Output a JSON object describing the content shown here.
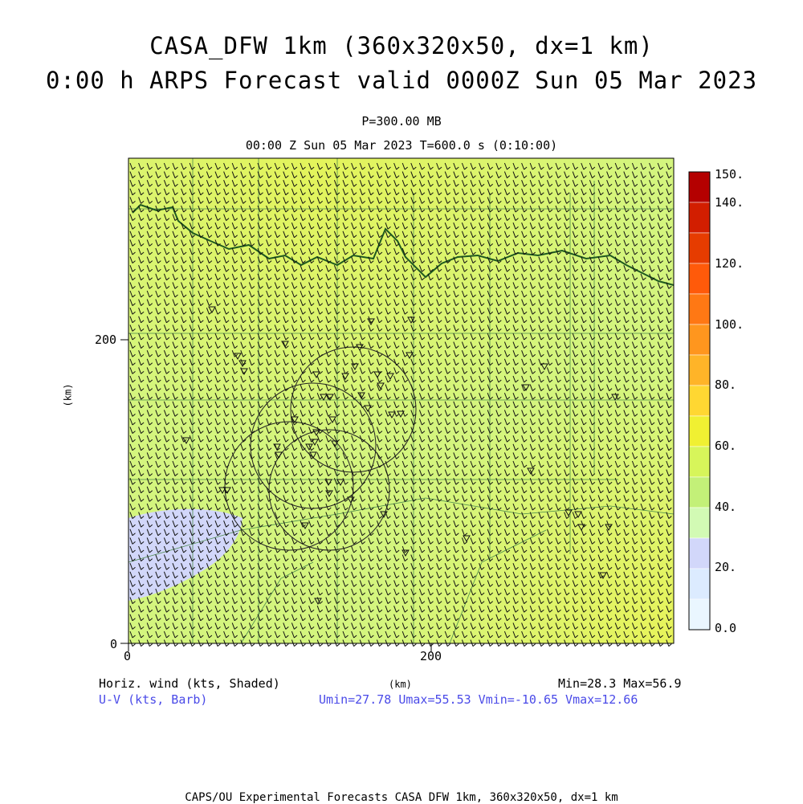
{
  "titles": {
    "line1": "CASA_DFW 1km (360x320x50, dx=1 km)",
    "line2": "0:00 h ARPS Forecast valid 0000Z Sun 05 Mar 2023",
    "pressure": "P=300.00 MB",
    "time": "00:00 Z Sun 05 Mar 2023    T=600.0 s (0:10:00)"
  },
  "axes": {
    "x_label": "(km)",
    "y_label": "(km)",
    "x_ticks": [
      "0",
      "200"
    ],
    "y_ticks": [
      "0",
      "200"
    ]
  },
  "colorbar": {
    "labels": [
      "150.",
      "140.",
      "120.",
      "100.",
      "80.",
      "60.",
      "40.",
      "20.",
      "0.0"
    ],
    "colors": [
      "#b40000",
      "#d21e00",
      "#e63c00",
      "#ff5a0a",
      "#ff7814",
      "#ff961e",
      "#ffb428",
      "#ffd732",
      "#f0f032",
      "#d7f55a",
      "#c3f078",
      "#d2fab4",
      "#d2d7fa",
      "#dcebff",
      "#eaf6ff"
    ]
  },
  "legend": {
    "field_label": "Horiz. wind (kts, Shaded)",
    "barb_label": "U-V (kts, Barb)",
    "minmax": "Min=28.3 Max=56.9",
    "uv_stats": "Umin=27.78 Umax=55.53 Vmin=-10.65 Vmax=12.66"
  },
  "credit": "CAPS/OU Experimental Forecasts  CASA DFW 1km, 360x320x50, dx=1 km",
  "chart_data": {
    "type": "heatmap",
    "title": "CASA_DFW 1km (360x320x50, dx=1 km)",
    "field": "Horizontal wind speed at 300 mb",
    "units": "kts",
    "xlim_km": [
      0,
      360
    ],
    "ylim_km": [
      0,
      320
    ],
    "color_scale": [
      0,
      10,
      20,
      30,
      40,
      50,
      60,
      70,
      80,
      90,
      100,
      110,
      120,
      130,
      140,
      150
    ],
    "min": 28.3,
    "max": 56.9,
    "umin": 27.78,
    "umax": 55.53,
    "vmin": -10.65,
    "vmax": 12.66
  }
}
